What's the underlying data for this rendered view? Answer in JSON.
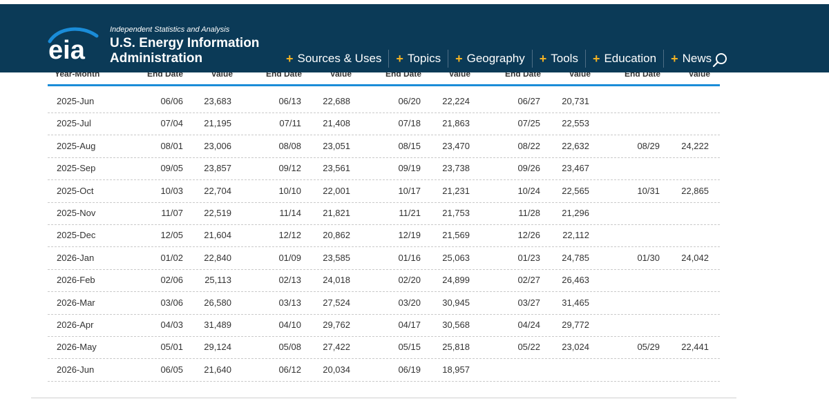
{
  "header": {
    "logo_text": "eia",
    "tagline": "Independent Statistics and Analysis",
    "agency_line1": "U.S. Energy Information",
    "agency_line2": "Administration",
    "nav": [
      {
        "label": "Sources & Uses"
      },
      {
        "label": "Topics"
      },
      {
        "label": "Geography"
      },
      {
        "label": "Tools"
      },
      {
        "label": "Education"
      },
      {
        "label": "News"
      }
    ],
    "plus_icon": "plus-icon",
    "search_icon": "search-icon",
    "colors": {
      "header_bg": "#0b3a57",
      "accent_plus": "#f4b323",
      "rule_blue": "#1a8cd8"
    }
  },
  "table": {
    "headers": [
      "Year-Month",
      "End Date",
      "Value",
      "End Date",
      "Value",
      "End Date",
      "Value",
      "End Date",
      "Value",
      "End Date",
      "Value"
    ],
    "rows": [
      {
        "ym": "2025-Jun",
        "cells": [
          "06/06",
          "23,683",
          "06/13",
          "22,688",
          "06/20",
          "22,224",
          "06/27",
          "20,731",
          "",
          ""
        ]
      },
      {
        "ym": "2025-Jul",
        "cells": [
          "07/04",
          "21,195",
          "07/11",
          "21,408",
          "07/18",
          "21,863",
          "07/25",
          "22,553",
          "",
          ""
        ]
      },
      {
        "ym": "2025-Aug",
        "cells": [
          "08/01",
          "23,006",
          "08/08",
          "23,051",
          "08/15",
          "23,470",
          "08/22",
          "22,632",
          "08/29",
          "24,222"
        ]
      },
      {
        "ym": "2025-Sep",
        "cells": [
          "09/05",
          "23,857",
          "09/12",
          "23,561",
          "09/19",
          "23,738",
          "09/26",
          "23,467",
          "",
          ""
        ]
      },
      {
        "ym": "2025-Oct",
        "cells": [
          "10/03",
          "22,704",
          "10/10",
          "22,001",
          "10/17",
          "21,231",
          "10/24",
          "22,565",
          "10/31",
          "22,865"
        ]
      },
      {
        "ym": "2025-Nov",
        "cells": [
          "11/07",
          "22,519",
          "11/14",
          "21,821",
          "11/21",
          "21,753",
          "11/28",
          "21,296",
          "",
          ""
        ]
      },
      {
        "ym": "2025-Dec",
        "cells": [
          "12/05",
          "21,604",
          "12/12",
          "20,862",
          "12/19",
          "21,569",
          "12/26",
          "22,112",
          "",
          ""
        ]
      },
      {
        "ym": "2026-Jan",
        "cells": [
          "01/02",
          "22,840",
          "01/09",
          "23,585",
          "01/16",
          "25,063",
          "01/23",
          "24,785",
          "01/30",
          "24,042"
        ]
      },
      {
        "ym": "2026-Feb",
        "cells": [
          "02/06",
          "25,113",
          "02/13",
          "24,018",
          "02/20",
          "24,899",
          "02/27",
          "26,463",
          "",
          ""
        ]
      },
      {
        "ym": "2026-Mar",
        "cells": [
          "03/06",
          "26,580",
          "03/13",
          "27,524",
          "03/20",
          "30,945",
          "03/27",
          "31,465",
          "",
          ""
        ]
      },
      {
        "ym": "2026-Apr",
        "cells": [
          "04/03",
          "31,489",
          "04/10",
          "29,762",
          "04/17",
          "30,568",
          "04/24",
          "29,772",
          "",
          ""
        ]
      },
      {
        "ym": "2026-May",
        "cells": [
          "05/01",
          "29,124",
          "05/08",
          "27,422",
          "05/15",
          "25,818",
          "05/22",
          "23,024",
          "05/29",
          "22,441"
        ]
      },
      {
        "ym": "2026-Jun",
        "cells": [
          "06/05",
          "21,640",
          "06/12",
          "20,034",
          "06/19",
          "18,957",
          "",
          "",
          "",
          ""
        ]
      }
    ]
  }
}
